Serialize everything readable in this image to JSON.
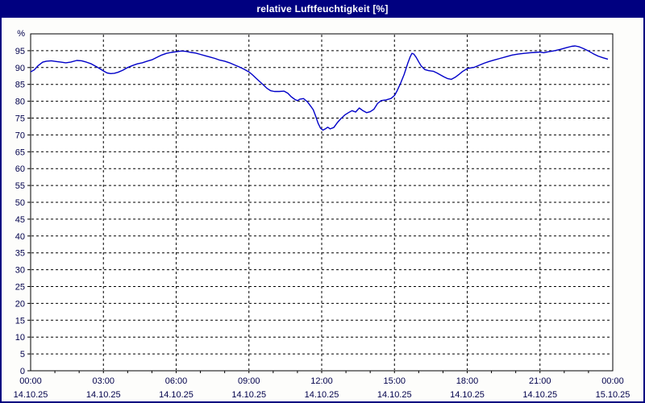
{
  "window": {
    "title": "relative Luftfeuchtigkeit [%]"
  },
  "colors": {
    "window_frame": "#000080",
    "titlebar_bg": "#000080",
    "titlebar_text": "#ffffff",
    "plot_bg": "#ffffff",
    "grid": "#000000",
    "plot_border": "#000000",
    "axis_text": "#00004b",
    "line": "#0000c8"
  },
  "chart_data": {
    "type": "line",
    "title": "relative Luftfeuchtigkeit [%]",
    "xlabel": "",
    "ylabel": "%",
    "ylim": [
      0,
      100
    ],
    "xlim_hours": [
      0,
      24
    ],
    "grid": "on, black dashed; horizontal every 5 %, vertical every 3 h, minor x ticks hourly",
    "legend": "none",
    "y_ticks": [
      0,
      5,
      10,
      15,
      20,
      25,
      30,
      35,
      40,
      45,
      50,
      55,
      60,
      65,
      70,
      75,
      80,
      85,
      90,
      95
    ],
    "x_ticks": [
      {
        "hour": 0,
        "label": "00:00",
        "date": "14.10.25"
      },
      {
        "hour": 3,
        "label": "03:00",
        "date": "14.10.25"
      },
      {
        "hour": 6,
        "label": "06:00",
        "date": "14.10.25"
      },
      {
        "hour": 9,
        "label": "09:00",
        "date": "14.10.25"
      },
      {
        "hour": 12,
        "label": "12:00",
        "date": "14.10.25"
      },
      {
        "hour": 15,
        "label": "15:00",
        "date": "14.10.25"
      },
      {
        "hour": 18,
        "label": "18:00",
        "date": "14.10.25"
      },
      {
        "hour": 21,
        "label": "21:00",
        "date": "14.10.25"
      },
      {
        "hour": 24,
        "label": "00:00",
        "date": "15.10.25"
      }
    ],
    "series": [
      {
        "name": "relative Luftfeuchtigkeit",
        "color": "#0000c8",
        "points": [
          [
            0.0,
            88.7
          ],
          [
            0.15,
            89.3
          ],
          [
            0.3,
            90.5
          ],
          [
            0.5,
            91.6
          ],
          [
            0.65,
            91.9
          ],
          [
            0.85,
            92.0
          ],
          [
            1.05,
            91.8
          ],
          [
            1.25,
            91.6
          ],
          [
            1.45,
            91.4
          ],
          [
            1.65,
            91.6
          ],
          [
            1.9,
            92.1
          ],
          [
            2.1,
            92.0
          ],
          [
            2.3,
            91.6
          ],
          [
            2.5,
            91.1
          ],
          [
            2.7,
            90.3
          ],
          [
            2.85,
            89.7
          ],
          [
            3.0,
            89.0
          ],
          [
            3.15,
            88.4
          ],
          [
            3.3,
            88.2
          ],
          [
            3.45,
            88.3
          ],
          [
            3.6,
            88.6
          ],
          [
            3.8,
            89.2
          ],
          [
            4.0,
            90.0
          ],
          [
            4.2,
            90.6
          ],
          [
            4.4,
            91.1
          ],
          [
            4.6,
            91.4
          ],
          [
            4.8,
            91.9
          ],
          [
            5.0,
            92.3
          ],
          [
            5.2,
            93.0
          ],
          [
            5.4,
            93.7
          ],
          [
            5.6,
            94.2
          ],
          [
            5.8,
            94.5
          ],
          [
            6.0,
            94.7
          ],
          [
            6.2,
            94.9
          ],
          [
            6.4,
            94.8
          ],
          [
            6.6,
            94.5
          ],
          [
            6.8,
            94.3
          ],
          [
            7.0,
            93.9
          ],
          [
            7.2,
            93.5
          ],
          [
            7.4,
            93.1
          ],
          [
            7.6,
            92.7
          ],
          [
            7.8,
            92.2
          ],
          [
            8.0,
            91.9
          ],
          [
            8.2,
            91.4
          ],
          [
            8.4,
            90.8
          ],
          [
            8.6,
            90.2
          ],
          [
            8.8,
            89.5
          ],
          [
            9.0,
            88.7
          ],
          [
            9.15,
            87.8
          ],
          [
            9.3,
            86.8
          ],
          [
            9.45,
            85.8
          ],
          [
            9.6,
            84.8
          ],
          [
            9.75,
            83.8
          ],
          [
            9.9,
            83.1
          ],
          [
            10.05,
            82.9
          ],
          [
            10.25,
            82.9
          ],
          [
            10.45,
            83.0
          ],
          [
            10.6,
            82.4
          ],
          [
            10.75,
            81.3
          ],
          [
            10.9,
            80.5
          ],
          [
            11.0,
            80.2
          ],
          [
            11.1,
            80.6
          ],
          [
            11.25,
            80.8
          ],
          [
            11.4,
            79.9
          ],
          [
            11.55,
            78.5
          ],
          [
            11.65,
            77.5
          ],
          [
            11.75,
            75.6
          ],
          [
            11.85,
            73.5
          ],
          [
            11.95,
            72.0
          ],
          [
            12.05,
            71.4
          ],
          [
            12.15,
            71.8
          ],
          [
            12.25,
            72.3
          ],
          [
            12.35,
            71.8
          ],
          [
            12.5,
            72.2
          ],
          [
            12.65,
            73.7
          ],
          [
            12.8,
            74.9
          ],
          [
            12.95,
            75.9
          ],
          [
            13.1,
            76.6
          ],
          [
            13.25,
            77.2
          ],
          [
            13.4,
            76.8
          ],
          [
            13.55,
            78.0
          ],
          [
            13.7,
            77.2
          ],
          [
            13.85,
            76.6
          ],
          [
            14.0,
            76.9
          ],
          [
            14.15,
            77.6
          ],
          [
            14.3,
            79.3
          ],
          [
            14.45,
            80.2
          ],
          [
            14.65,
            80.4
          ],
          [
            14.85,
            80.8
          ],
          [
            15.0,
            81.7
          ],
          [
            15.1,
            83.0
          ],
          [
            15.25,
            85.3
          ],
          [
            15.4,
            88.0
          ],
          [
            15.55,
            91.3
          ],
          [
            15.65,
            93.2
          ],
          [
            15.72,
            94.2
          ],
          [
            15.8,
            94.0
          ],
          [
            15.9,
            93.0
          ],
          [
            16.0,
            91.7
          ],
          [
            16.1,
            90.5
          ],
          [
            16.25,
            89.4
          ],
          [
            16.4,
            89.1
          ],
          [
            16.6,
            88.9
          ],
          [
            16.75,
            88.4
          ],
          [
            16.9,
            87.8
          ],
          [
            17.05,
            87.2
          ],
          [
            17.2,
            86.7
          ],
          [
            17.35,
            86.5
          ],
          [
            17.5,
            87.1
          ],
          [
            17.65,
            87.9
          ],
          [
            17.8,
            88.8
          ],
          [
            18.0,
            89.7
          ],
          [
            18.15,
            89.9
          ],
          [
            18.3,
            90.1
          ],
          [
            18.5,
            90.7
          ],
          [
            18.7,
            91.3
          ],
          [
            18.9,
            91.8
          ],
          [
            19.1,
            92.2
          ],
          [
            19.35,
            92.7
          ],
          [
            19.6,
            93.2
          ],
          [
            19.85,
            93.7
          ],
          [
            20.1,
            94.0
          ],
          [
            20.35,
            94.2
          ],
          [
            20.6,
            94.4
          ],
          [
            20.8,
            94.5
          ],
          [
            21.0,
            94.6
          ],
          [
            21.15,
            94.4
          ],
          [
            21.35,
            94.7
          ],
          [
            21.6,
            95.0
          ],
          [
            21.85,
            95.4
          ],
          [
            22.1,
            95.9
          ],
          [
            22.3,
            96.3
          ],
          [
            22.45,
            96.4
          ],
          [
            22.6,
            96.2
          ],
          [
            22.8,
            95.6
          ],
          [
            23.0,
            94.9
          ],
          [
            23.2,
            94.1
          ],
          [
            23.4,
            93.4
          ],
          [
            23.6,
            92.9
          ],
          [
            23.8,
            92.5
          ]
        ]
      }
    ]
  }
}
